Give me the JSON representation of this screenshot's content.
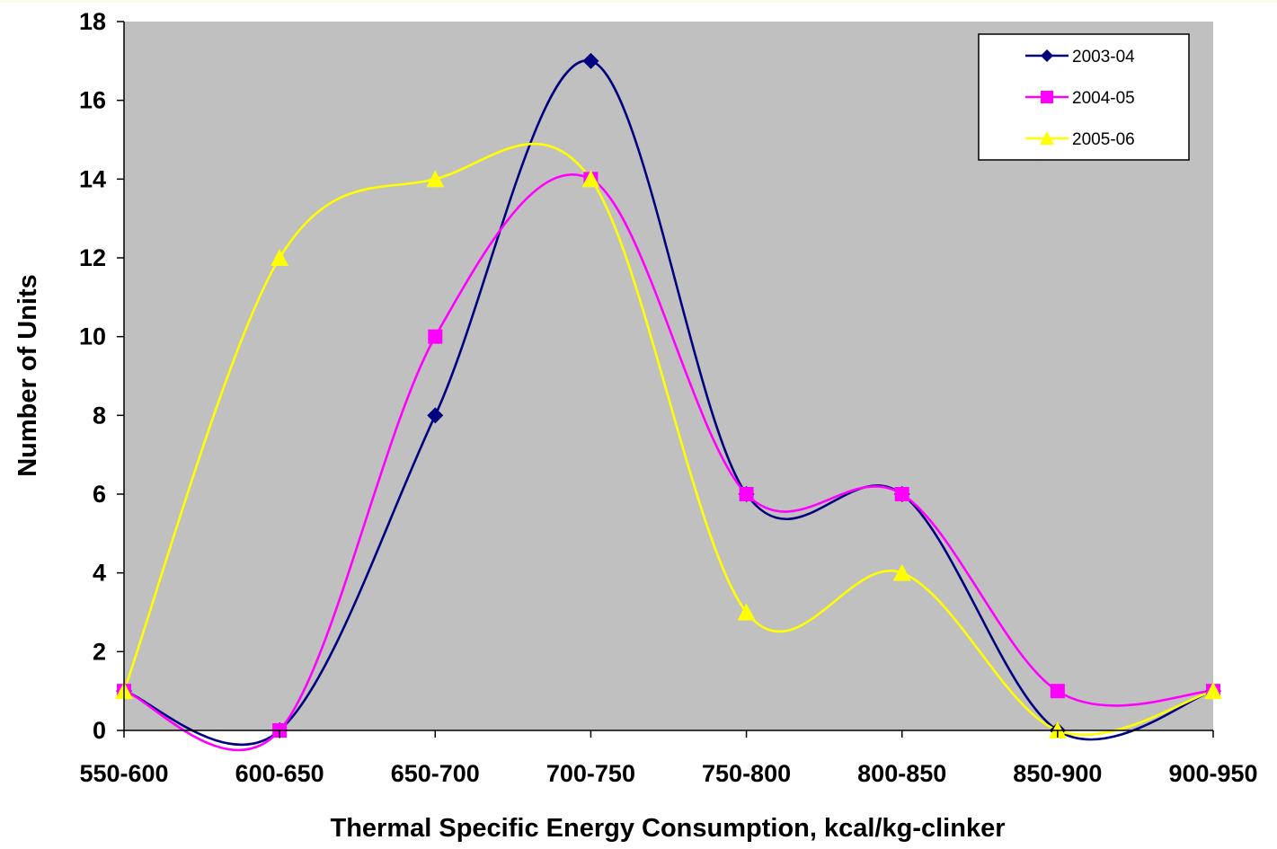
{
  "chart_data": {
    "type": "line",
    "title": "",
    "xlabel": "Thermal Specific Energy Consumption, kcal/kg-clinker",
    "ylabel": "Number of Units",
    "categories": [
      "550-600",
      "600-650",
      "650-700",
      "700-750",
      "750-800",
      "800-850",
      "850-900",
      "900-950"
    ],
    "ylim": [
      0,
      18
    ],
    "yticks": [
      0,
      2,
      4,
      6,
      8,
      10,
      12,
      14,
      16,
      18
    ],
    "grid": false,
    "smoothed": true,
    "legend_position": "top-right",
    "plot_background": "#c0c0c0",
    "series": [
      {
        "name": "2003-04",
        "values": [
          1,
          0,
          8,
          17,
          6,
          6,
          0,
          1
        ],
        "color": "#000080",
        "marker": "diamond"
      },
      {
        "name": "2004-05",
        "values": [
          1,
          0,
          10,
          14,
          6,
          6,
          1,
          1
        ],
        "color": "#ff00ff",
        "marker": "square"
      },
      {
        "name": "2005-06",
        "values": [
          1,
          12,
          14,
          14,
          3,
          4,
          0,
          1
        ],
        "color": "#ffff00",
        "marker": "triangle"
      }
    ]
  }
}
